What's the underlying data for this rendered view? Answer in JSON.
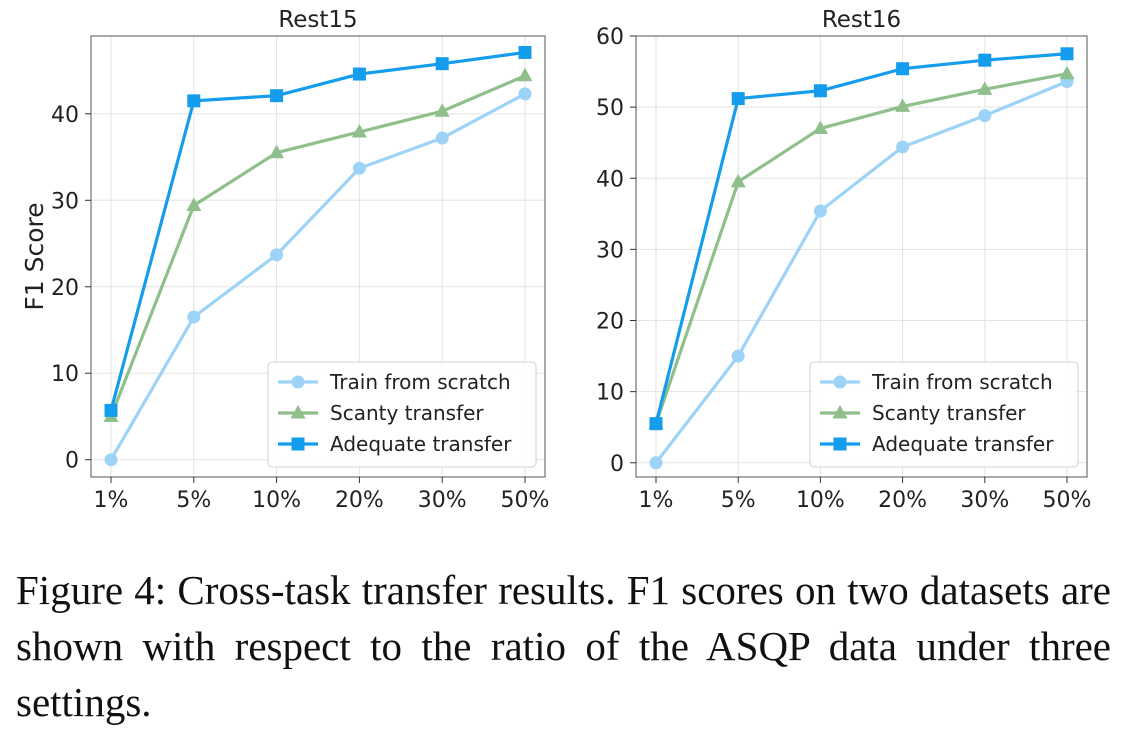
{
  "chart_data": [
    {
      "type": "line",
      "title": "Rest15",
      "xlabel": "",
      "ylabel": "F1 Score",
      "categories": [
        "1%",
        "5%",
        "10%",
        "20%",
        "30%",
        "50%"
      ],
      "ylim": [
        -2,
        49
      ],
      "yticks": [
        0,
        10,
        20,
        30,
        40
      ],
      "grid": true,
      "legend_position": "lower-right",
      "series": [
        {
          "name": "Train from scratch",
          "values": [
            0,
            16.5,
            23.7,
            33.7,
            37.2,
            42.3
          ],
          "color": "#9dd3f7",
          "marker": "circle"
        },
        {
          "name": "Scanty transfer",
          "values": [
            5.0,
            29.4,
            35.5,
            37.9,
            40.3,
            44.4
          ],
          "color": "#8fbf8a",
          "marker": "triangle"
        },
        {
          "name": "Adequate transfer",
          "values": [
            5.7,
            41.5,
            42.1,
            44.6,
            45.8,
            47.1
          ],
          "color": "#159ded",
          "marker": "square"
        }
      ]
    },
    {
      "type": "line",
      "title": "Rest16",
      "xlabel": "",
      "ylabel": "",
      "categories": [
        "1%",
        "5%",
        "10%",
        "20%",
        "30%",
        "50%"
      ],
      "ylim": [
        -2,
        60
      ],
      "yticks": [
        0,
        10,
        20,
        30,
        40,
        50,
        60
      ],
      "grid": true,
      "legend_position": "lower-right",
      "series": [
        {
          "name": "Train from scratch",
          "values": [
            0,
            15.0,
            35.4,
            44.4,
            48.8,
            53.6
          ],
          "color": "#9dd3f7",
          "marker": "circle"
        },
        {
          "name": "Scanty transfer",
          "values": [
            5.5,
            39.5,
            47.0,
            50.1,
            52.5,
            54.7
          ],
          "color": "#8fbf8a",
          "marker": "triangle"
        },
        {
          "name": "Adequate transfer",
          "values": [
            5.5,
            51.2,
            52.3,
            55.4,
            56.6,
            57.5
          ],
          "color": "#159ded",
          "marker": "square"
        }
      ]
    }
  ],
  "caption": "Figure 4: Cross-task transfer results. F1 scores on two datasets are shown with respect to the ratio of the ASQP data under three settings."
}
